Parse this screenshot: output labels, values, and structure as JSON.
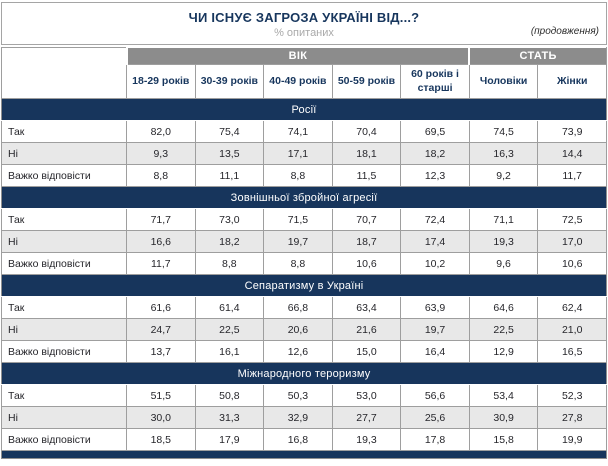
{
  "header": {
    "title": "ЧИ ІСНУЄ ЗАГРОЗА УКРАЇНІ ВІД...?",
    "subtitle": "% опитаних",
    "continuation": "(продовження)"
  },
  "table": {
    "group_headers": {
      "age": "ВІК",
      "gender": "СТАТЬ"
    },
    "columns": [
      "18-29 років",
      "30-39 років",
      "40-49 років",
      "50-59 років",
      "60 років і старші",
      "Чоловіки",
      "Жінки"
    ],
    "row_labels": [
      "Так",
      "Ні",
      "Важко відповісти"
    ],
    "sections": [
      {
        "title": "Росії",
        "rows": [
          [
            "82,0",
            "75,4",
            "74,1",
            "70,4",
            "69,5",
            "74,5",
            "73,9"
          ],
          [
            "9,3",
            "13,5",
            "17,1",
            "18,1",
            "18,2",
            "16,3",
            "14,4"
          ],
          [
            "8,8",
            "11,1",
            "8,8",
            "11,5",
            "12,3",
            "9,2",
            "11,7"
          ]
        ]
      },
      {
        "title": "Зовнішньої збройної агресії",
        "rows": [
          [
            "71,7",
            "73,0",
            "71,5",
            "70,7",
            "72,4",
            "71,1",
            "72,5"
          ],
          [
            "16,6",
            "18,2",
            "19,7",
            "18,7",
            "17,4",
            "19,3",
            "17,0"
          ],
          [
            "11,7",
            "8,8",
            "8,8",
            "10,6",
            "10,2",
            "9,6",
            "10,6"
          ]
        ]
      },
      {
        "title": "Сепаратизму в Україні",
        "rows": [
          [
            "61,6",
            "61,4",
            "66,8",
            "63,4",
            "63,9",
            "64,6",
            "62,4"
          ],
          [
            "24,7",
            "22,5",
            "20,6",
            "21,6",
            "19,7",
            "22,5",
            "21,0"
          ],
          [
            "13,7",
            "16,1",
            "12,6",
            "15,0",
            "16,4",
            "12,9",
            "16,5"
          ]
        ]
      },
      {
        "title": "Міжнародного тероризму",
        "rows": [
          [
            "51,5",
            "50,8",
            "50,3",
            "53,0",
            "56,6",
            "53,4",
            "52,3"
          ],
          [
            "30,0",
            "31,3",
            "32,9",
            "27,7",
            "25,6",
            "30,9",
            "27,8"
          ],
          [
            "18,5",
            "17,9",
            "16,8",
            "19,3",
            "17,8",
            "15,8",
            "19,9"
          ]
        ]
      }
    ]
  },
  "colors": {
    "navy": "#17355c",
    "band_gray": "#8c8c8c",
    "alt_row": "#e8e8e8",
    "title_navy": "#17365d",
    "subtitle_gray": "#a9a9a9",
    "border_gray": "#9e9e9e"
  }
}
